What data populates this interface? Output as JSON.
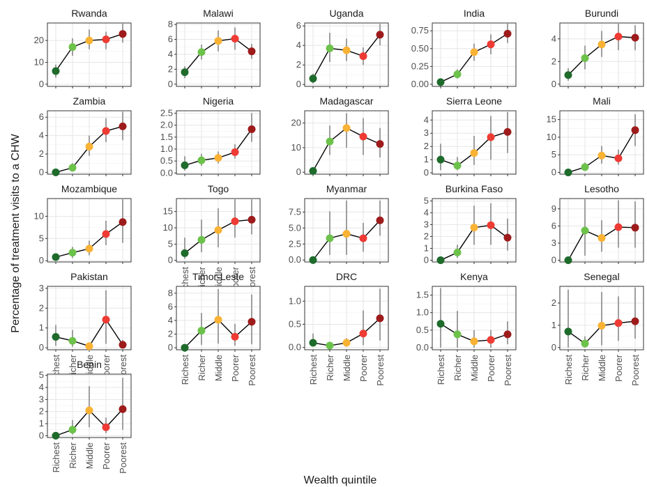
{
  "figure": {
    "ylabel": "Percentage of treatment visits to a CHW",
    "xlabel": "Wealth quintile"
  },
  "colors": {
    "quintiles": [
      "#1e6b2b",
      "#6cc24a",
      "#f9b233",
      "#ee3b34",
      "#9e1b1b"
    ],
    "panel_bg": "#ffffff",
    "grid": "#e6e6e6",
    "border": "#333333",
    "errorbar": "#9e9e9e",
    "line": "#000000"
  },
  "chart_data": [
    {
      "type": "line",
      "title": "Rwanda",
      "categories": [
        "Richest",
        "Richer",
        "Middle",
        "Poorer",
        "Poorest"
      ],
      "values": [
        6,
        17,
        20,
        20.5,
        23
      ],
      "lower": [
        3,
        13,
        16,
        16,
        19
      ],
      "upper": [
        9,
        21,
        25,
        24,
        28
      ],
      "ylim": [
        -1,
        28
      ],
      "yticks": [
        0,
        10,
        20
      ],
      "ytick_labels": [
        "0",
        "10",
        "20"
      ],
      "grid": true
    },
    {
      "type": "line",
      "title": "Malawi",
      "categories": [
        "Richest",
        "Richer",
        "Middle",
        "Poorer",
        "Poorest"
      ],
      "values": [
        1.6,
        4.3,
        5.8,
        6.1,
        4.4
      ],
      "lower": [
        0.8,
        3.3,
        4.4,
        4.6,
        3.4
      ],
      "upper": [
        2.4,
        5.3,
        7.2,
        7.6,
        5.4
      ],
      "ylim": [
        -0.3,
        8.2
      ],
      "yticks": [
        0,
        2,
        4,
        6,
        8
      ],
      "ytick_labels": [
        "0",
        "2",
        "4",
        "6",
        "8"
      ],
      "grid": true
    },
    {
      "type": "line",
      "title": "Uganda",
      "categories": [
        "Richest",
        "Richer",
        "Middle",
        "Poorer",
        "Poorest"
      ],
      "values": [
        0.6,
        3.7,
        3.5,
        2.9,
        5.1
      ],
      "lower": [
        0.1,
        2.3,
        2.4,
        2.0,
        4.0
      ],
      "upper": [
        1.1,
        5.3,
        4.7,
        3.8,
        6.2
      ],
      "ylim": [
        -0.2,
        6.3
      ],
      "yticks": [
        0,
        2,
        4,
        6
      ],
      "ytick_labels": [
        "0",
        "2",
        "4",
        "6"
      ],
      "grid": true
    },
    {
      "type": "line",
      "title": "India",
      "categories": [
        "Richest",
        "Richer",
        "Middle",
        "Poorer",
        "Poorest"
      ],
      "values": [
        0.03,
        0.14,
        0.45,
        0.56,
        0.71
      ],
      "lower": [
        0.01,
        0.08,
        0.33,
        0.42,
        0.58
      ],
      "upper": [
        0.06,
        0.21,
        0.57,
        0.7,
        0.85
      ],
      "ylim": [
        -0.03,
        0.86
      ],
      "yticks": [
        0,
        0.25,
        0.5,
        0.75
      ],
      "ytick_labels": [
        "0.00",
        "0.25",
        "0.50",
        "0.75"
      ],
      "grid": true
    },
    {
      "type": "line",
      "title": "Burundi",
      "categories": [
        "Richest",
        "Richer",
        "Middle",
        "Poorer",
        "Poorest"
      ],
      "values": [
        0.8,
        2.3,
        3.5,
        4.2,
        4.1
      ],
      "lower": [
        0.3,
        1.3,
        2.4,
        3.0,
        3.0
      ],
      "upper": [
        1.4,
        3.4,
        4.7,
        5.4,
        5.2
      ],
      "ylim": [
        -0.2,
        5.4
      ],
      "yticks": [
        0,
        2,
        4
      ],
      "ytick_labels": [
        "0",
        "2",
        "4"
      ],
      "grid": true
    },
    {
      "type": "line",
      "title": "Zambia",
      "categories": [
        "Richest",
        "Richer",
        "Middle",
        "Poorer",
        "Poorest"
      ],
      "values": [
        0,
        0.5,
        2.8,
        4.5,
        5.0
      ],
      "lower": [
        0,
        0.2,
        1.8,
        3.3,
        3.5
      ],
      "upper": [
        0.2,
        1.0,
        4.0,
        5.9,
        6.6
      ],
      "ylim": [
        -0.2,
        6.7
      ],
      "yticks": [
        0,
        2,
        4,
        6
      ],
      "ytick_labels": [
        "0",
        "2",
        "4",
        "6"
      ],
      "grid": true
    },
    {
      "type": "line",
      "title": "Nigeria",
      "categories": [
        "Richest",
        "Richer",
        "Middle",
        "Poorer",
        "Poorest"
      ],
      "values": [
        0.32,
        0.53,
        0.63,
        0.87,
        1.83
      ],
      "lower": [
        0.1,
        0.3,
        0.4,
        0.6,
        1.3
      ],
      "upper": [
        0.7,
        0.8,
        0.9,
        1.2,
        2.5
      ],
      "ylim": [
        -0.05,
        2.6
      ],
      "yticks": [
        0,
        0.5,
        1,
        1.5,
        2,
        2.5
      ],
      "ytick_labels": [
        "0.0",
        "0.5",
        "1.0",
        "1.5",
        "2.0",
        "2.5"
      ],
      "grid": true
    },
    {
      "type": "line",
      "title": "Madagascar",
      "categories": [
        "Richest",
        "Richer",
        "Middle",
        "Poorer",
        "Poorest"
      ],
      "values": [
        0.5,
        12.5,
        18,
        14.5,
        11.5
      ],
      "lower": [
        0,
        7,
        10,
        7,
        6
      ],
      "upper": [
        2,
        19,
        24,
        22,
        18
      ],
      "ylim": [
        -0.8,
        25
      ],
      "yticks": [
        0,
        10,
        20
      ],
      "ytick_labels": [
        "0",
        "10",
        "20"
      ],
      "grid": true
    },
    {
      "type": "line",
      "title": "Sierra Leone",
      "categories": [
        "Richest",
        "Richer",
        "Middle",
        "Poorer",
        "Poorest"
      ],
      "values": [
        1.0,
        0.55,
        1.5,
        2.7,
        3.1
      ],
      "lower": [
        0.2,
        0.2,
        0.6,
        1.0,
        1.5
      ],
      "upper": [
        2.2,
        1.2,
        2.8,
        4.3,
        4.6
      ],
      "ylim": [
        -0.1,
        4.7
      ],
      "yticks": [
        0,
        1,
        2,
        3,
        4
      ],
      "ytick_labels": [
        "0",
        "1",
        "2",
        "3",
        "4"
      ],
      "grid": true
    },
    {
      "type": "line",
      "title": "Mali",
      "categories": [
        "Richest",
        "Richer",
        "Middle",
        "Poorer",
        "Poorest"
      ],
      "values": [
        0,
        1.5,
        4.8,
        4.0,
        12
      ],
      "lower": [
        0,
        0.4,
        2.5,
        2.2,
        7.5
      ],
      "upper": [
        0.5,
        2.8,
        7.5,
        6.5,
        16.5
      ],
      "ylim": [
        -0.5,
        17.5
      ],
      "yticks": [
        0,
        5,
        10,
        15
      ],
      "ytick_labels": [
        "0",
        "5",
        "10",
        "15"
      ],
      "grid": true
    },
    {
      "type": "line",
      "title": "Mozambique",
      "categories": [
        "Richest",
        "Richer",
        "Middle",
        "Poorer",
        "Poorest"
      ],
      "values": [
        0.8,
        1.8,
        2.7,
        6.0,
        8.7
      ],
      "lower": [
        0.2,
        0.6,
        1.2,
        3.5,
        4
      ],
      "upper": [
        1.4,
        3.1,
        4.5,
        9,
        14
      ],
      "ylim": [
        -0.3,
        14
      ],
      "yticks": [
        0,
        5,
        10
      ],
      "ytick_labels": [
        "0",
        "5",
        "10"
      ],
      "grid": true
    },
    {
      "type": "line",
      "title": "Togo",
      "categories": [
        "Richest",
        "Richer",
        "Middle",
        "Poorer",
        "Poorest"
      ],
      "values": [
        2.2,
        6.3,
        9.3,
        12,
        12.5
      ],
      "lower": [
        0.5,
        2.5,
        4,
        7,
        8
      ],
      "upper": [
        7,
        12.5,
        16,
        19,
        19
      ],
      "ylim": [
        -0.5,
        19
      ],
      "yticks": [
        0,
        5,
        10,
        15
      ],
      "ytick_labels": [
        "0",
        "5",
        "10",
        "15"
      ],
      "grid": true
    },
    {
      "type": "line",
      "title": "Myanmar",
      "categories": [
        "Richest",
        "Richer",
        "Middle",
        "Poorer",
        "Poorest"
      ],
      "values": [
        0,
        3.4,
        4.1,
        3.4,
        6.2
      ],
      "lower": [
        0,
        0.8,
        0.8,
        1.3,
        3.8
      ],
      "upper": [
        0.3,
        7.6,
        9.3,
        5.8,
        9.3
      ],
      "ylim": [
        -0.3,
        9.6
      ],
      "yticks": [
        0,
        2.5,
        5,
        7.5
      ],
      "ytick_labels": [
        "0.0",
        "2.5",
        "5.0",
        "7.5"
      ],
      "grid": true
    },
    {
      "type": "line",
      "title": "Burkina Faso",
      "categories": [
        "Richest",
        "Richer",
        "Middle",
        "Poorer",
        "Poorest"
      ],
      "values": [
        0,
        0.65,
        2.75,
        2.95,
        1.9
      ],
      "lower": [
        0,
        0.2,
        1.3,
        1.3,
        0.8
      ],
      "upper": [
        0.2,
        1.3,
        4.6,
        4.8,
        3.5
      ],
      "ylim": [
        -0.15,
        5.2
      ],
      "yticks": [
        0,
        1,
        2,
        3,
        4,
        5
      ],
      "ytick_labels": [
        "0",
        "1",
        "2",
        "3",
        "4",
        "5"
      ],
      "grid": true
    },
    {
      "type": "line",
      "title": "Lesotho",
      "categories": [
        "Richest",
        "Richer",
        "Middle",
        "Poorer",
        "Poorest"
      ],
      "values": [
        0,
        5.2,
        3.9,
        5.8,
        5.7
      ],
      "lower": [
        0,
        0.8,
        1.5,
        2.2,
        2.2
      ],
      "upper": [
        0.4,
        10.8,
        7,
        10.5,
        10.3
      ],
      "ylim": [
        -0.3,
        10.8
      ],
      "yticks": [
        0,
        3,
        6,
        9
      ],
      "ytick_labels": [
        "0",
        "3",
        "6",
        "9"
      ],
      "grid": true
    },
    {
      "type": "line",
      "title": "Pakistan",
      "categories": [
        "Richest",
        "Richer",
        "Middle",
        "Poorer",
        "Poorest"
      ],
      "values": [
        0.55,
        0.35,
        0.08,
        1.42,
        0.15
      ],
      "lower": [
        0.1,
        0.05,
        0,
        0.2,
        0
      ],
      "upper": [
        1.15,
        0.9,
        0.25,
        2.9,
        0.4
      ],
      "ylim": [
        -0.1,
        3.1
      ],
      "yticks": [
        0,
        1,
        2,
        3
      ],
      "ytick_labels": [
        "0",
        "1",
        "2",
        "3"
      ],
      "grid": true
    },
    {
      "type": "line",
      "title": "Timor-Leste",
      "categories": [
        "Richest",
        "Richer",
        "Middle",
        "Poorer",
        "Poorest"
      ],
      "values": [
        0,
        2.5,
        4.1,
        1.6,
        3.8
      ],
      "lower": [
        0,
        0.4,
        0.6,
        0.3,
        0.5
      ],
      "upper": [
        0.4,
        5.1,
        8.6,
        3.5,
        7.8
      ],
      "ylim": [
        -0.3,
        9
      ],
      "yticks": [
        0,
        2,
        4,
        6,
        8
      ],
      "ytick_labels": [
        "0",
        "2",
        "4",
        "6",
        "8"
      ],
      "grid": true
    },
    {
      "type": "line",
      "title": "DRC",
      "categories": [
        "Richest",
        "Richer",
        "Middle",
        "Poorer",
        "Poorest"
      ],
      "values": [
        0.1,
        0.04,
        0.1,
        0.3,
        0.63
      ],
      "lower": [
        0.02,
        0.01,
        0.02,
        0.05,
        0.15
      ],
      "upper": [
        0.3,
        0.1,
        0.2,
        0.8,
        1.27
      ],
      "ylim": [
        -0.05,
        1.32
      ],
      "yticks": [
        0,
        0.5,
        1
      ],
      "ytick_labels": [
        "0.0",
        "0.5",
        "1.0"
      ],
      "grid": true
    },
    {
      "type": "line",
      "title": "Kenya",
      "categories": [
        "Richest",
        "Richer",
        "Middle",
        "Poorer",
        "Poorest"
      ],
      "values": [
        0.68,
        0.38,
        0.18,
        0.22,
        0.38
      ],
      "lower": [
        0,
        0,
        0,
        0,
        0.1
      ],
      "upper": [
        1.7,
        1.05,
        0.5,
        0.5,
        0.75
      ],
      "ylim": [
        -0.06,
        1.75
      ],
      "yticks": [
        0,
        0.5,
        1,
        1.5
      ],
      "ytick_labels": [
        "0.0",
        "0.5",
        "1.0",
        "1.5"
      ],
      "grid": true
    },
    {
      "type": "line",
      "title": "Senegal",
      "categories": [
        "Richest",
        "Richer",
        "Middle",
        "Poorer",
        "Poorest"
      ],
      "values": [
        0.72,
        0.18,
        0.98,
        1.1,
        1.18
      ],
      "lower": [
        0,
        0,
        0.1,
        0.3,
        0.4
      ],
      "upper": [
        2.6,
        0.5,
        2.5,
        2.3,
        2.7
      ],
      "ylim": [
        -0.1,
        2.75
      ],
      "yticks": [
        0,
        1,
        2
      ],
      "ytick_labels": [
        "0",
        "1",
        "2"
      ],
      "grid": true
    },
    {
      "type": "line",
      "title": "Benin",
      "categories": [
        "Richest",
        "Richer",
        "Middle",
        "Poorer",
        "Poorest"
      ],
      "values": [
        0,
        0.5,
        2.1,
        0.7,
        2.2
      ],
      "lower": [
        0,
        0.1,
        0.7,
        0.2,
        0.5
      ],
      "upper": [
        0.2,
        1.3,
        4.1,
        1.5,
        4.8
      ],
      "ylim": [
        -0.15,
        5.1
      ],
      "yticks": [
        0,
        1,
        2,
        3,
        4,
        5
      ],
      "ytick_labels": [
        "0",
        "1",
        "2",
        "3",
        "4",
        "5"
      ],
      "grid": true
    }
  ]
}
